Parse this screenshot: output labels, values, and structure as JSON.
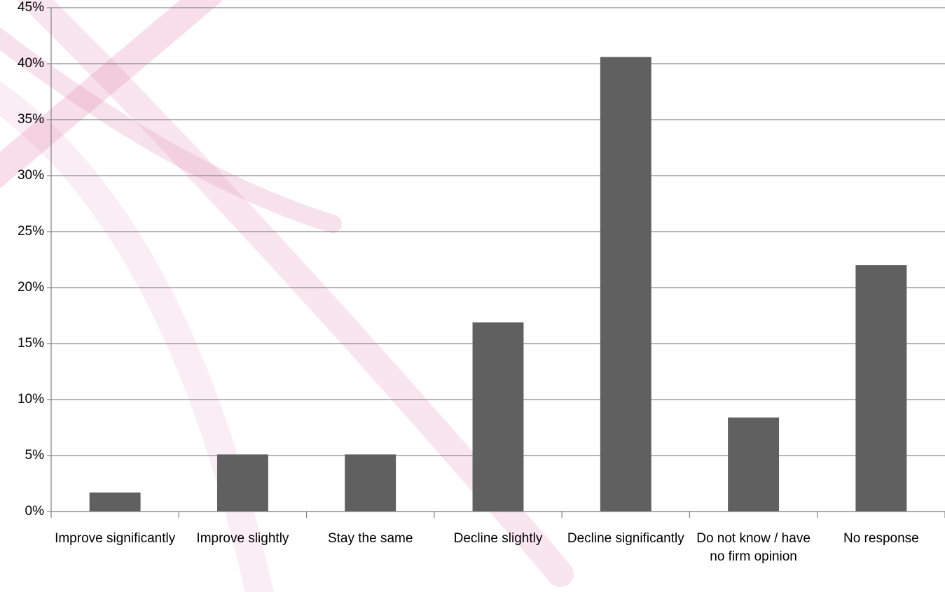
{
  "chart_data": {
    "type": "bar",
    "categories": [
      "Improve significantly",
      "Improve slightly",
      "Stay the same",
      "Decline slightly",
      "Decline significantly",
      "Do not know / have no firm opinion",
      "No response"
    ],
    "values": [
      1.7,
      5.1,
      5.1,
      16.9,
      40.6,
      8.4,
      22.0
    ],
    "color": "#606060",
    "ylim": [
      0,
      45
    ],
    "yticks": [
      {
        "value": 0,
        "label": "0%"
      },
      {
        "value": 5,
        "label": "5%"
      },
      {
        "value": 10,
        "label": "10%"
      },
      {
        "value": 15,
        "label": "15%"
      },
      {
        "value": 20,
        "label": "20%"
      },
      {
        "value": 25,
        "label": "25%"
      },
      {
        "value": 30,
        "label": "30%"
      },
      {
        "value": 35,
        "label": "35%"
      },
      {
        "value": 40,
        "label": "40%"
      },
      {
        "value": 45,
        "label": "45%"
      }
    ],
    "grid": true
  }
}
